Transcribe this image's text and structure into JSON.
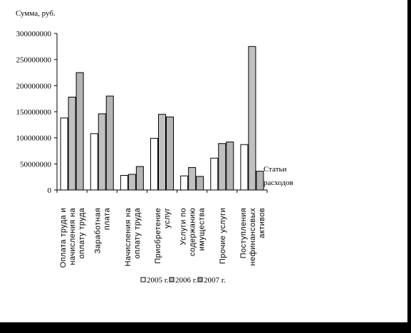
{
  "chart_data": {
    "type": "bar",
    "ylabel": "Сумма, руб.",
    "xlabel": [
      "Статьи",
      "расходов"
    ],
    "ylim": [
      0,
      300000000
    ],
    "yticks": [
      "0",
      "50000000",
      "100000000",
      "150000000",
      "200000000",
      "250000000",
      "300000000"
    ],
    "categories": [
      [
        "Оплата труда и",
        "начисления на",
        "оплату труда"
      ],
      [
        "Заработная",
        "плата"
      ],
      [
        "Начисления на",
        "оплату труда"
      ],
      [
        "Приобретение",
        "услуг"
      ],
      [
        "Услуги по",
        "содержанию",
        "имущества"
      ],
      [
        "Прочие услуги"
      ],
      [
        "Поступления",
        "нефинансовых",
        "активов"
      ]
    ],
    "series": [
      {
        "name": "2005 г.",
        "color": "#ffffff",
        "values": [
          138000000,
          108000000,
          28000000,
          99000000,
          27000000,
          61000000,
          87000000
        ]
      },
      {
        "name": "2006 г.",
        "color": "#c0c0c0",
        "values": [
          178000000,
          146000000,
          30000000,
          145000000,
          43000000,
          89000000,
          275000000
        ]
      },
      {
        "name": "2007 г.",
        "color": "#b4b4b4",
        "values": [
          225000000,
          180000000,
          45000000,
          140000000,
          26000000,
          92000000,
          36000000
        ]
      }
    ],
    "legend": "bottom",
    "grid": false
  }
}
